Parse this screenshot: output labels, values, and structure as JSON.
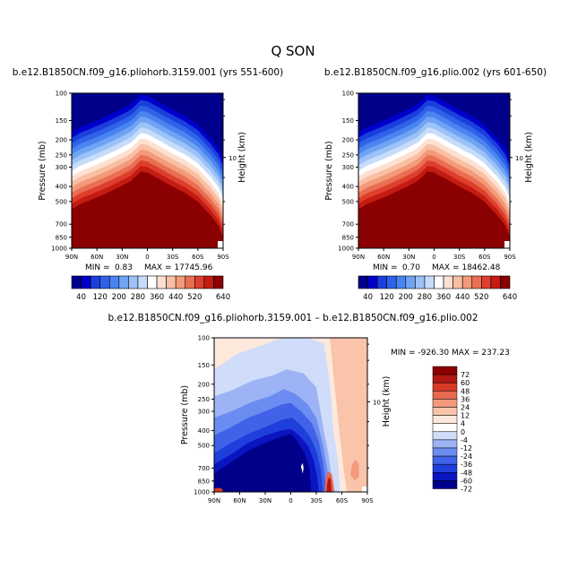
{
  "figure": {
    "title": "Q SON",
    "colors": {
      "full_scale": [
        "#00008b",
        "#0000cd",
        "#1a3fdc",
        "#2f62e8",
        "#4a84f0",
        "#6fa3f4",
        "#9cc2f7",
        "#c6dcfa",
        "#ffffff",
        "#fde0d2",
        "#f9bfa3",
        "#f39a7a",
        "#ea6f52",
        "#dd3f2c",
        "#c41b12",
        "#8b0000"
      ],
      "diff_scale": [
        "#00008b",
        "#0a14c0",
        "#1f3fdc",
        "#3f62e8",
        "#6b8cf0",
        "#9db3f5",
        "#cfdcfa",
        "#ffffff",
        "#fde8dc",
        "#f9c4aa",
        "#f29a7b",
        "#e86850",
        "#d73a26",
        "#b01812",
        "#8b0000"
      ]
    },
    "panels": [
      {
        "title": "b.e12.B1850CN.f09_g16.pliohorb.3159.001 (yrs 551-600)",
        "min_label": "MIN =",
        "min_value": "0.83",
        "max_label": "MAX = 17745.96"
      },
      {
        "title": "b.e12.B1850CN.f09_g16.plio.002 (yrs 601-650)",
        "min_label": "MIN =",
        "min_value": "0.70",
        "max_label": "MAX = 18462.48"
      },
      {
        "title": "b.e12.B1850CN.f09_g16.pliohorb.3159.001 – b.e12.B1850CN.f09_g16.plio.002",
        "minmax_label": "MIN = -926.30   MAX = 237.23"
      }
    ]
  },
  "chart_data": [
    {
      "type": "heatmap",
      "title": "b.e12.B1850CN.f09_g16.pliohorb.3159.001 (yrs 551-600)",
      "ylabel": "Pressure (mb)",
      "ylabel_right": "Height (km)",
      "x_ticks": [
        "90N",
        "60N",
        "30N",
        "0",
        "30S",
        "60S",
        "90S"
      ],
      "y_ticks": [
        "100",
        "150",
        "200",
        "250",
        "300",
        "400",
        "500",
        "700",
        "850",
        "1000"
      ],
      "y_right_ticks": [
        "10"
      ],
      "ylim": [
        1000,
        100
      ],
      "y_scale": "log",
      "colorbar_labels": [
        "40",
        "120",
        "200",
        "280",
        "360",
        "440",
        "520",
        "640"
      ],
      "min": 0.83,
      "max": 17745.96,
      "moisture_top_mb": [
        [
          -90,
          560
        ],
        [
          -80,
          520
        ],
        [
          -60,
          470
        ],
        [
          -40,
          420
        ],
        [
          -20,
          370
        ],
        [
          -8,
          320
        ],
        [
          0,
          325
        ],
        [
          15,
          360
        ],
        [
          30,
          400
        ],
        [
          45,
          440
        ],
        [
          60,
          500
        ],
        [
          75,
          610
        ],
        [
          85,
          720
        ],
        [
          90,
          850
        ]
      ]
    },
    {
      "type": "heatmap",
      "title": "b.e12.B1850CN.f09_g16.plio.002 (yrs 601-650)",
      "ylabel": "Pressure (mb)",
      "ylabel_right": "Height (km)",
      "x_ticks": [
        "90N",
        "60N",
        "30N",
        "0",
        "30S",
        "60S",
        "90S"
      ],
      "y_ticks": [
        "100",
        "150",
        "200",
        "250",
        "300",
        "400",
        "500",
        "700",
        "850",
        "1000"
      ],
      "y_right_ticks": [
        "10"
      ],
      "ylim": [
        1000,
        100
      ],
      "y_scale": "log",
      "colorbar_labels": [
        "40",
        "120",
        "200",
        "280",
        "360",
        "440",
        "520",
        "640"
      ],
      "min": 0.7,
      "max": 18462.48,
      "moisture_top_mb": [
        [
          -90,
          560
        ],
        [
          -80,
          520
        ],
        [
          -60,
          470
        ],
        [
          -40,
          420
        ],
        [
          -20,
          370
        ],
        [
          -8,
          320
        ],
        [
          0,
          325
        ],
        [
          15,
          360
        ],
        [
          30,
          400
        ],
        [
          45,
          440
        ],
        [
          60,
          500
        ],
        [
          75,
          610
        ],
        [
          85,
          720
        ],
        [
          90,
          850
        ]
      ]
    },
    {
      "type": "heatmap",
      "title": "b.e12.B1850CN.f09_g16.pliohorb.3159.001 – b.e12.B1850CN.f09_g16.plio.002",
      "ylabel": "Pressure (mb)",
      "ylabel_right": "Height (km)",
      "x_ticks": [
        "90N",
        "60N",
        "30N",
        "0",
        "30S",
        "60S",
        "90S"
      ],
      "y_ticks": [
        "100",
        "150",
        "200",
        "250",
        "300",
        "400",
        "500",
        "700",
        "850",
        "1000"
      ],
      "y_right_ticks": [
        "10"
      ],
      "ylim": [
        1000,
        100
      ],
      "y_scale": "log",
      "colorbar_labels": [
        "72",
        "60",
        "48",
        "36",
        "24",
        "12",
        "4",
        "0",
        "-4",
        "-12",
        "-24",
        "-36",
        "-48",
        "-60",
        "-72"
      ],
      "min": -926.3,
      "max": 237.23
    }
  ]
}
